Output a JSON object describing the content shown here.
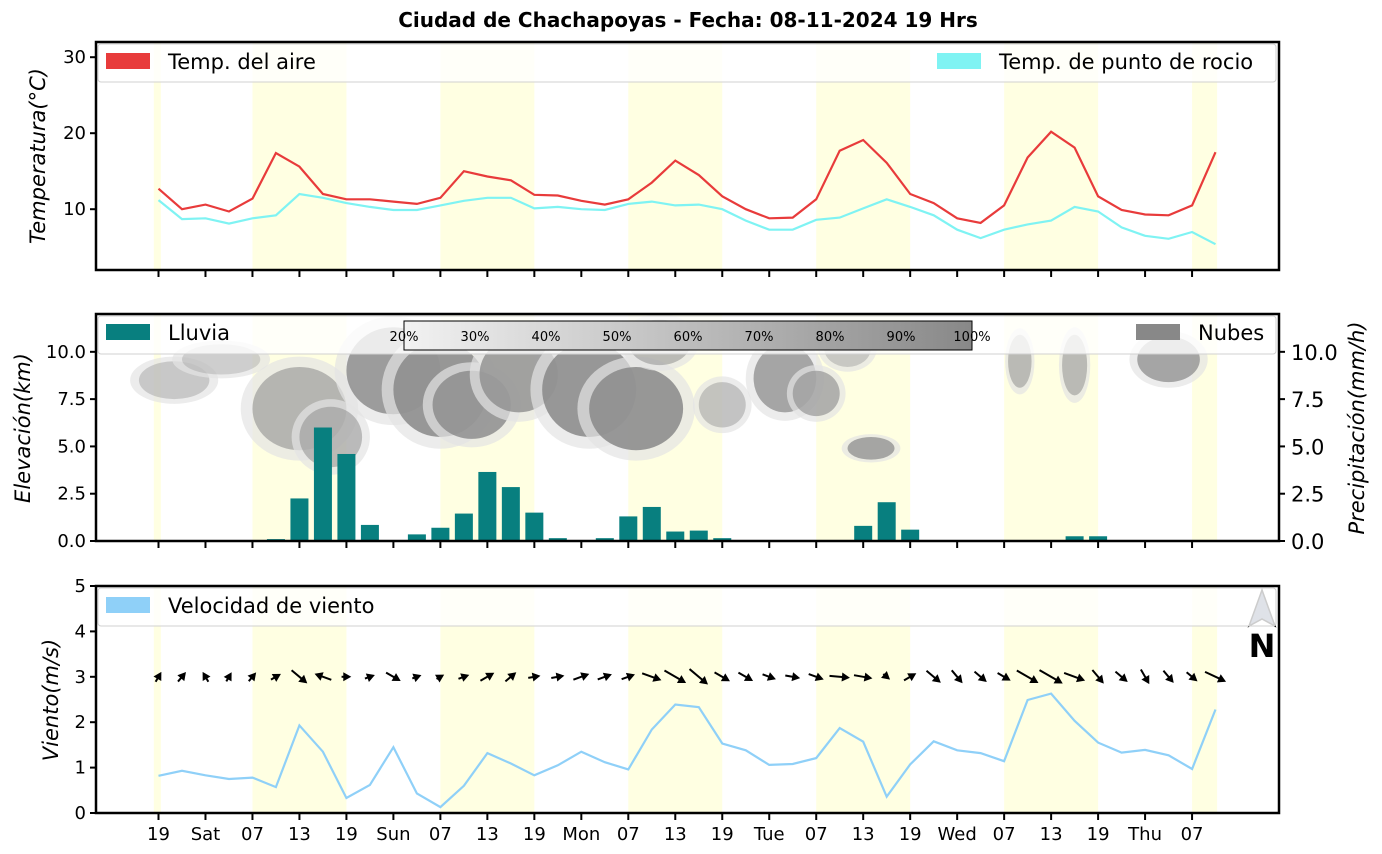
{
  "title": "Ciudad de Chachapoyas   -   Fecha: 08-11-2024 19 Hrs",
  "x_ticks": [
    "19",
    "Sat",
    "07",
    "13",
    "19",
    "Sun",
    "07",
    "13",
    "19",
    "Mon",
    "07",
    "13",
    "19",
    "Tue",
    "07",
    "13",
    "19",
    "Wed",
    "07",
    "13",
    "19",
    "Thu",
    "07"
  ],
  "colors": {
    "air": "#e83b3b",
    "dew": "#7ff3f3",
    "rain": "#087f7f",
    "clouds": "#888888",
    "wind": "#8fd0f8",
    "day_band": "#ffffe2",
    "north_arrow": "#5f6e8a"
  },
  "chart_data": [
    {
      "type": "line",
      "panel": "temperature",
      "ylabel": "Temperatura(°C)",
      "yticks": [
        10,
        20,
        30
      ],
      "ylim": [
        2,
        32
      ],
      "legend_placement": "top",
      "x_hours_from_fri19": [
        0,
        3,
        6,
        9,
        12,
        15,
        18,
        21,
        24,
        27,
        30,
        33,
        36,
        39,
        42,
        45,
        48,
        51,
        54,
        57,
        60,
        63,
        66,
        69,
        72,
        75,
        78,
        81,
        84,
        87,
        90,
        93,
        96,
        99,
        102,
        105,
        108,
        111,
        114,
        117,
        120,
        123,
        126,
        129,
        132,
        135
      ],
      "series": [
        {
          "name": "Temp. del aire",
          "color": "#e83b3b",
          "values": [
            12.7,
            10.0,
            10.6,
            9.7,
            11.4,
            17.4,
            15.6,
            12.0,
            11.3,
            11.3,
            11.0,
            10.7,
            11.5,
            15.0,
            14.3,
            13.8,
            11.9,
            11.8,
            11.1,
            10.6,
            11.3,
            13.5,
            16.4,
            14.5,
            11.7,
            10.0,
            8.8,
            8.9,
            11.3,
            17.7,
            19.1,
            16.1,
            12.0,
            10.8,
            8.8,
            8.2,
            10.5,
            16.8,
            20.2,
            18.1,
            11.7,
            9.9,
            9.3,
            9.2,
            10.5,
            17.5
          ]
        },
        {
          "name": "Temp. de punto de rocio",
          "color": "#7ff3f3",
          "values": [
            11.2,
            8.7,
            8.8,
            8.1,
            8.8,
            9.2,
            12.0,
            11.5,
            10.8,
            10.3,
            9.9,
            9.9,
            10.5,
            11.1,
            11.5,
            11.5,
            10.1,
            10.3,
            10.0,
            9.9,
            10.7,
            11.0,
            10.5,
            10.6,
            10.0,
            8.5,
            7.3,
            7.3,
            8.6,
            8.9,
            10.1,
            11.3,
            10.3,
            9.2,
            7.3,
            6.2,
            7.3,
            8.0,
            8.5,
            10.3,
            9.7,
            7.6,
            6.5,
            6.1,
            7.0,
            5.4
          ]
        }
      ]
    },
    {
      "type": "bar",
      "panel": "precipitation",
      "ylabel_left": "Elevación(km)",
      "ylabel_right": "Precipitación(mm/h)",
      "yticks": [
        0.0,
        2.5,
        5.0,
        7.5,
        10.0
      ],
      "yticks_labels": [
        "0.0",
        "2.5",
        "5.0",
        "7.5",
        "10.0"
      ],
      "ylim": [
        0,
        12
      ],
      "legend_left": "Lluvia",
      "legend_right": "Nubes",
      "cloud_colorbar_labels": [
        "20%",
        "30%",
        "40%",
        "50%",
        "60%",
        "70%",
        "80%",
        "90%",
        "100%"
      ],
      "x_hours_from_fri19": [
        0,
        3,
        6,
        9,
        12,
        15,
        18,
        21,
        24,
        27,
        30,
        33,
        36,
        39,
        42,
        45,
        48,
        51,
        54,
        57,
        60,
        63,
        66,
        69,
        72,
        75,
        78,
        81,
        84,
        87,
        90,
        93,
        96,
        99,
        102,
        105,
        108,
        111,
        114,
        117,
        120,
        123,
        126,
        129,
        132,
        135
      ],
      "series": [
        {
          "name": "Lluvia",
          "color": "#087f7f",
          "values": [
            0,
            0,
            0,
            0,
            0,
            0.1,
            2.25,
            6.0,
            4.6,
            0.85,
            0,
            0.35,
            0.7,
            1.45,
            3.65,
            2.85,
            1.5,
            0.15,
            0,
            0.15,
            1.3,
            1.8,
            0.5,
            0.55,
            0.15,
            0.05,
            0,
            0,
            0,
            0,
            0.8,
            2.05,
            0.6,
            0.05,
            0,
            0,
            0,
            0,
            0.05,
            0.25,
            0.25,
            0,
            0,
            0,
            0,
            0
          ]
        }
      ]
    },
    {
      "type": "line",
      "panel": "wind",
      "ylabel": "Viento(m/s)",
      "yticks": [
        0,
        1,
        2,
        3,
        4,
        5
      ],
      "ylim": [
        0,
        5
      ],
      "legend_placement": "top-left",
      "north_label": "N",
      "x_hours_from_fri19": [
        0,
        3,
        6,
        9,
        12,
        15,
        18,
        21,
        24,
        27,
        30,
        33,
        36,
        39,
        42,
        45,
        48,
        51,
        54,
        57,
        60,
        63,
        66,
        69,
        72,
        75,
        78,
        81,
        84,
        87,
        90,
        93,
        96,
        99,
        102,
        105,
        108,
        111,
        114,
        117,
        120,
        123,
        126,
        129,
        132,
        135
      ],
      "series": [
        {
          "name": "Velocidad de viento",
          "color": "#8fd0f8",
          "values": [
            0.82,
            0.93,
            0.83,
            0.75,
            0.78,
            0.57,
            1.93,
            1.35,
            0.33,
            0.62,
            1.45,
            0.43,
            0.13,
            0.6,
            1.32,
            1.09,
            0.83,
            1.05,
            1.35,
            1.12,
            0.96,
            1.84,
            2.39,
            2.33,
            1.53,
            1.38,
            1.06,
            1.08,
            1.21,
            1.87,
            1.57,
            0.36,
            1.07,
            1.58,
            1.38,
            1.32,
            1.14,
            2.49,
            2.63,
            2.03,
            1.55,
            1.33,
            1.39,
            1.27,
            0.97,
            2.28
          ]
        }
      ],
      "wind_arrow_angles_deg": [
        -60,
        -50,
        -120,
        -60,
        -50,
        -30,
        40,
        -160,
        0,
        -20,
        30,
        -20,
        -30,
        -20,
        -30,
        -40,
        -10,
        -10,
        -20,
        -20,
        -20,
        20,
        30,
        40,
        30,
        30,
        20,
        10,
        20,
        5,
        10,
        40,
        -30,
        40,
        50,
        40,
        30,
        30,
        30,
        20,
        50,
        40,
        60,
        50,
        40,
        25
      ],
      "wind_arrow_lengths": [
        0.5,
        0.6,
        0.5,
        0.4,
        0.5,
        0.5,
        1.5,
        1.2,
        0.3,
        0.4,
        1.1,
        0.3,
        0.2,
        0.5,
        1.0,
        0.8,
        0.6,
        0.7,
        1.1,
        0.9,
        0.8,
        1.5,
        2.0,
        1.9,
        1.2,
        1.1,
        0.8,
        0.9,
        1.0,
        1.5,
        1.3,
        0.2,
        0.8,
        1.3,
        1.1,
        1.0,
        0.9,
        2.0,
        2.2,
        1.7,
        1.2,
        1.0,
        1.1,
        1.0,
        0.8,
        1.8
      ]
    }
  ]
}
